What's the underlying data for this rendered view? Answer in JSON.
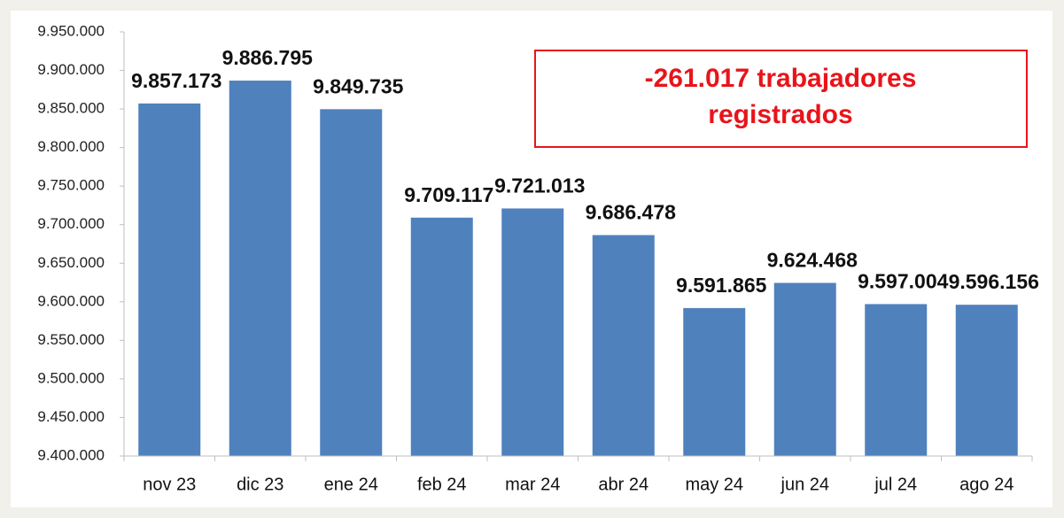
{
  "chart_data": {
    "type": "bar",
    "categories": [
      "nov 23",
      "dic 23",
      "ene 24",
      "feb 24",
      "mar 24",
      "abr 24",
      "may 24",
      "jun 24",
      "jul 24",
      "ago 24"
    ],
    "values": [
      9857173,
      9886795,
      9849735,
      9709117,
      9721013,
      9686478,
      9591865,
      9624468,
      9597004,
      9596156
    ],
    "value_labels": [
      "9.857.173",
      "9.886.795",
      "9.849.735",
      "9.709.117",
      "9.721.013",
      "9.686.478",
      "9.591.865",
      "9.624.468",
      "9.597.004",
      "9.596.156"
    ],
    "color": "#4f81bd",
    "ylim": [
      9400000,
      9950000
    ],
    "yticks": [
      {
        "value": 9400000,
        "label": "9.400.000"
      },
      {
        "value": 9450000,
        "label": "9.450.000"
      },
      {
        "value": 9500000,
        "label": "9.500.000"
      },
      {
        "value": 9550000,
        "label": "9.550.000"
      },
      {
        "value": 9600000,
        "label": "9.600.000"
      },
      {
        "value": 9650000,
        "label": "9.650.000"
      },
      {
        "value": 9700000,
        "label": "9.700.000"
      },
      {
        "value": 9750000,
        "label": "9.750.000"
      },
      {
        "value": 9800000,
        "label": "9.800.000"
      },
      {
        "value": 9850000,
        "label": "9.850.000"
      },
      {
        "value": 9900000,
        "label": "9.900.000"
      },
      {
        "value": 9950000,
        "label": "9.950.000"
      }
    ],
    "grid": false,
    "annotation": [
      "-261.017 trabajadores",
      "registrados"
    ]
  }
}
